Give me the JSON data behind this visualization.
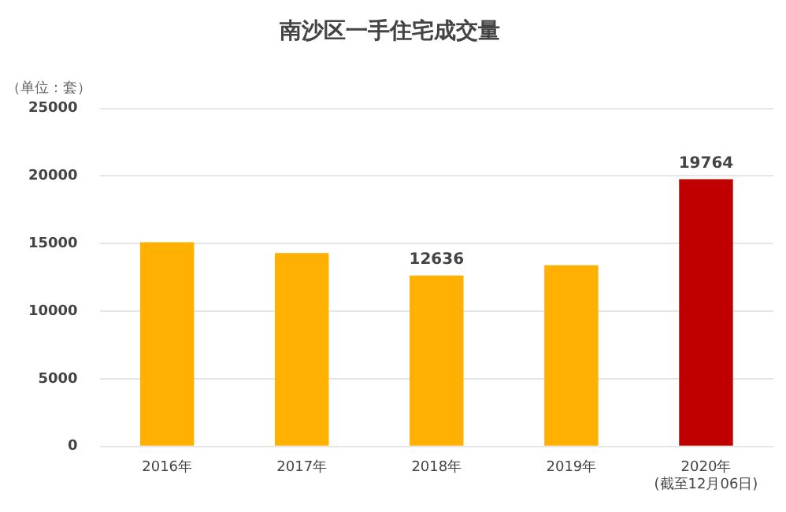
{
  "chart_data": {
    "type": "bar",
    "title": "南沙区一手住宅成交量",
    "ylabel": "（单位：套）",
    "categories": [
      "2016年",
      "2017年",
      "2018年",
      "2019年",
      "2020年\n(截至12月06日)"
    ],
    "values": [
      15100,
      14300,
      12636,
      13400,
      19764
    ],
    "colors": [
      "#ffb000",
      "#ffb000",
      "#ffb000",
      "#ffb000",
      "#c00000"
    ],
    "value_labels": [
      null,
      null,
      "12636",
      null,
      "19764"
    ],
    "ylim": [
      0,
      25000
    ],
    "yticks": [
      0,
      5000,
      10000,
      15000,
      20000,
      25000
    ],
    "grid": "y",
    "legend": false
  }
}
